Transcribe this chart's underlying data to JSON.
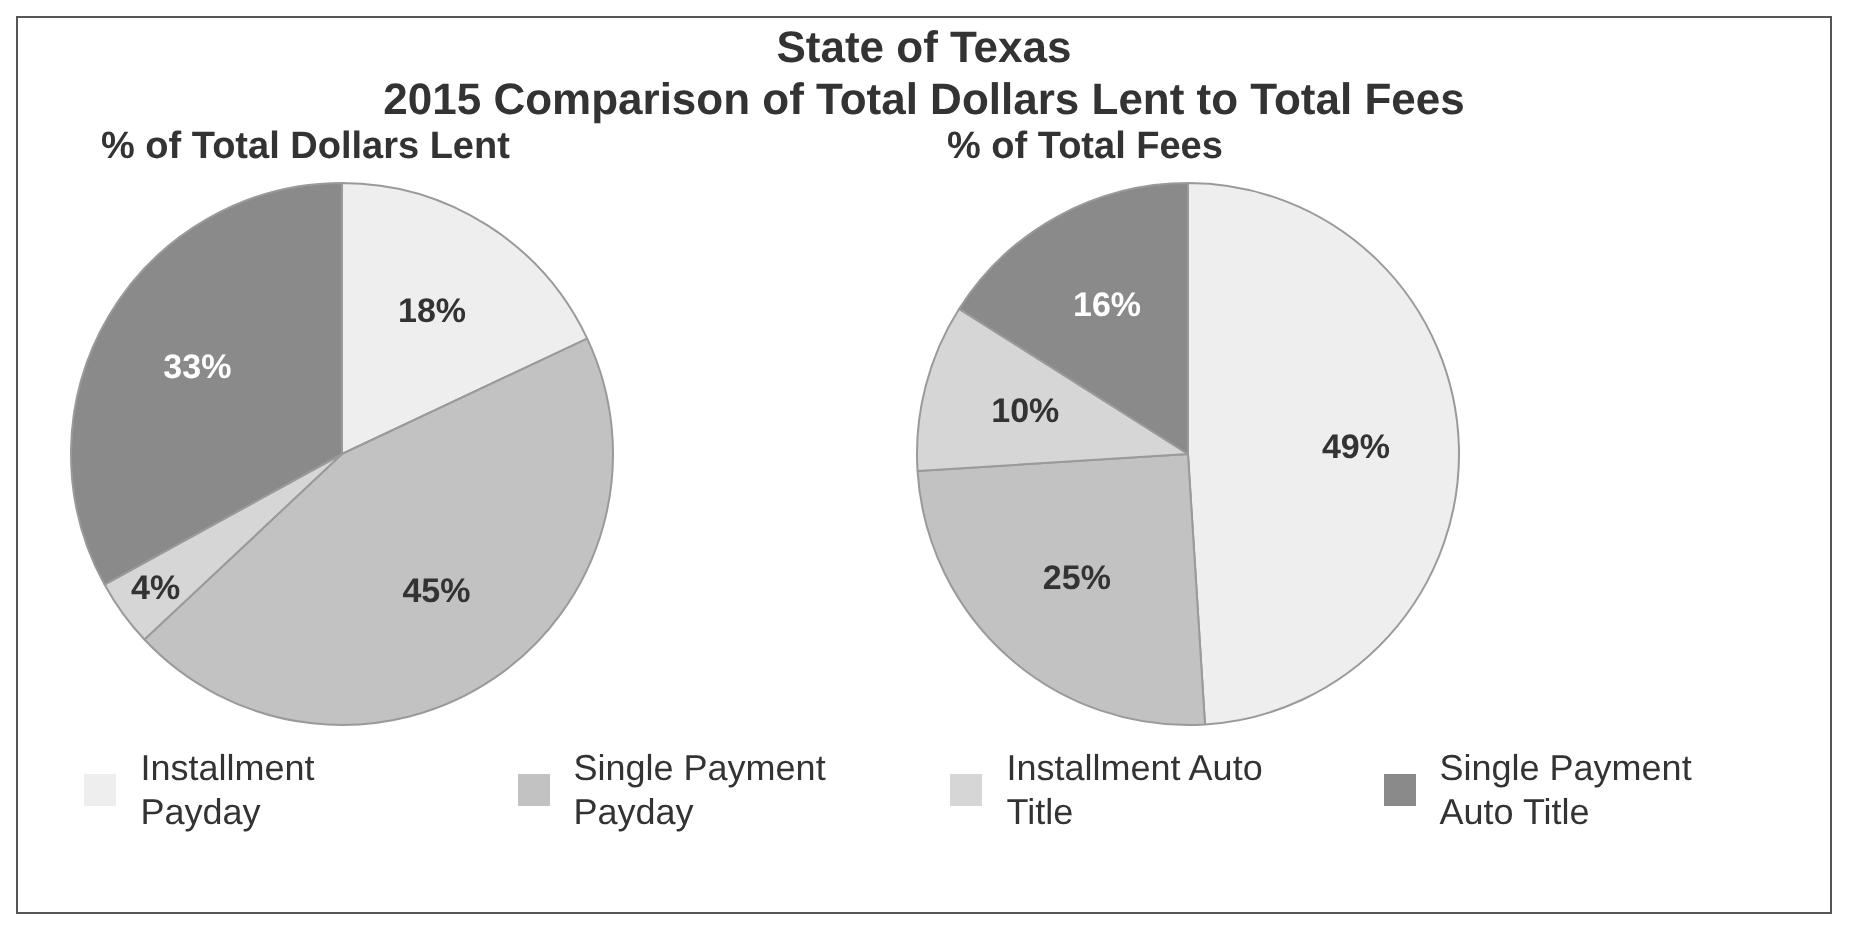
{
  "chart_data": [
    {
      "type": "other",
      "title": "State of Texas",
      "subtitle": "2015 Comparison of Total Dollars Lent to Total Fees"
    },
    {
      "type": "pie",
      "title": "% of Total Dollars Lent",
      "categories": [
        "Installment Payday",
        "Single Payment Payday",
        "Installment Auto Title",
        "Single Payment Auto Title"
      ],
      "values": [
        18,
        45,
        4,
        33
      ],
      "value_labels": [
        "18%",
        "45%",
        "4%",
        "33%"
      ],
      "colors": [
        "#eeeeee",
        "#c2c2c2",
        "#d6d6d6",
        "#8a8a8a"
      ],
      "legend": "bottom"
    },
    {
      "type": "pie",
      "title": "% of Total Fees",
      "categories": [
        null,
        null,
        null,
        null
      ],
      "values": [
        49,
        25,
        10,
        16
      ],
      "value_labels": [
        "49%",
        "25%",
        "10%",
        "16%"
      ],
      "colors": [
        "#eeeeee",
        "#c2c2c2",
        "#d6d6d6",
        "#8a8a8a"
      ]
    }
  ]
}
